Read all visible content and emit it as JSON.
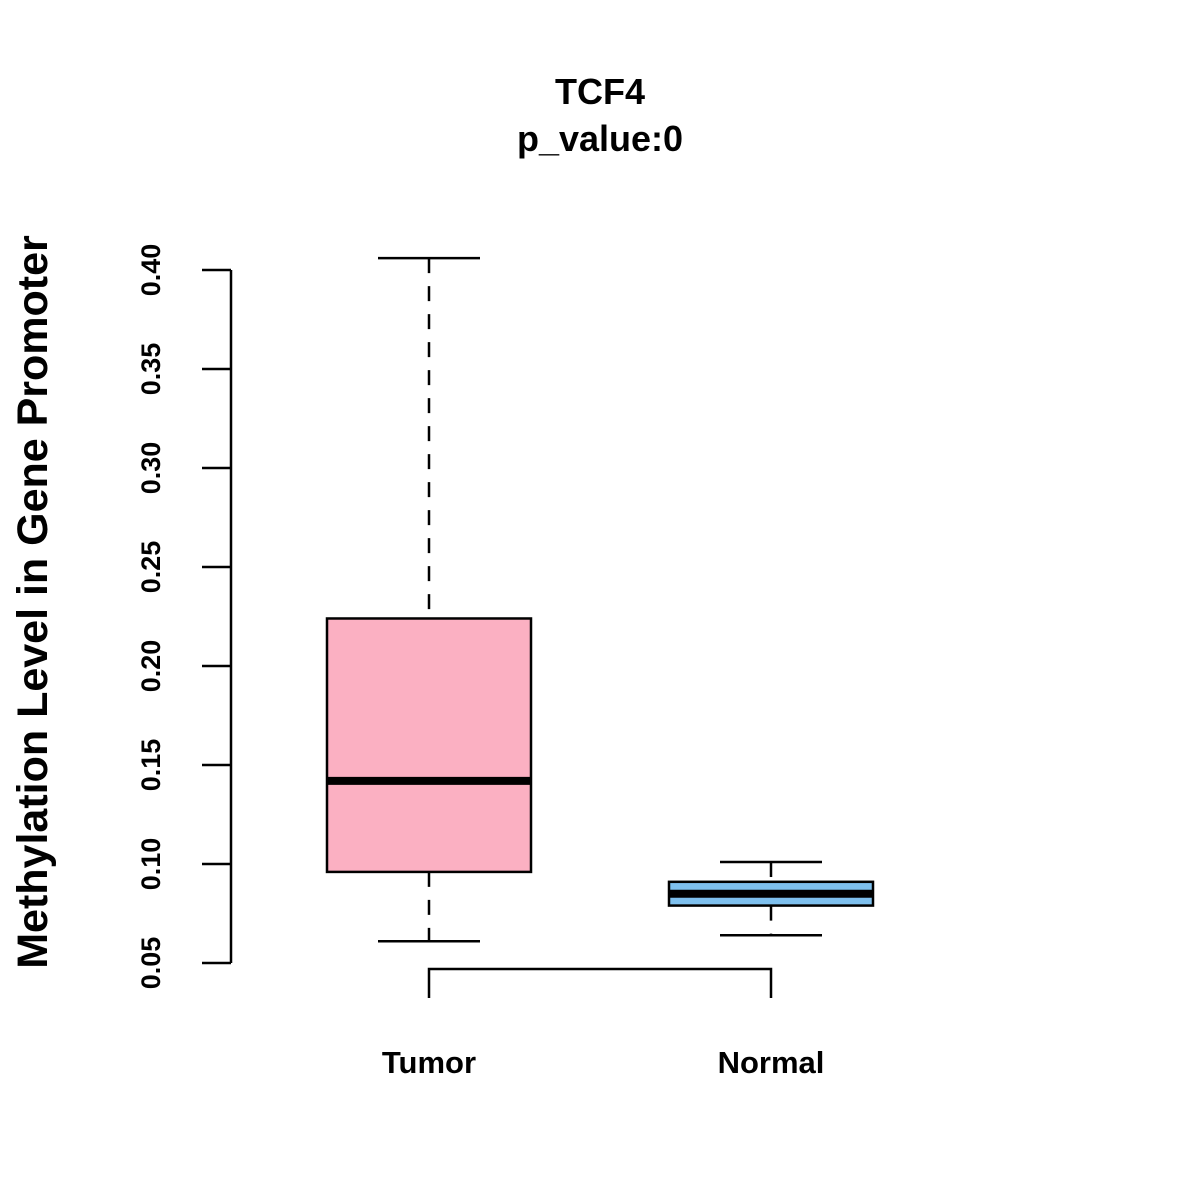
{
  "chart_data": {
    "type": "boxplot",
    "title": "TCF4",
    "subtitle": "p_value:0",
    "xlabel": "",
    "ylabel": "Methylation Level in Gene Promoter",
    "ylim": [
      0.05,
      0.4
    ],
    "yticks": [
      "0.05",
      "0.10",
      "0.15",
      "0.20",
      "0.25",
      "0.30",
      "0.35",
      "0.40"
    ],
    "grid": false,
    "categories": [
      "Tumor",
      "Normal"
    ],
    "boxes": [
      {
        "name": "Tumor",
        "color": "#FBB0C2",
        "whisker_low": 0.061,
        "q1": 0.096,
        "median": 0.142,
        "q3": 0.224,
        "whisker_high": 0.406,
        "whisker_style": "dashed"
      },
      {
        "name": "Normal",
        "color": "#7EC0EE",
        "whisker_low": 0.064,
        "q1": 0.079,
        "median": 0.085,
        "q3": 0.091,
        "whisker_high": 0.101,
        "whisker_style": "dashed"
      }
    ],
    "comparison_bracket": {
      "between": [
        "Tumor",
        "Normal"
      ],
      "label": ""
    }
  }
}
